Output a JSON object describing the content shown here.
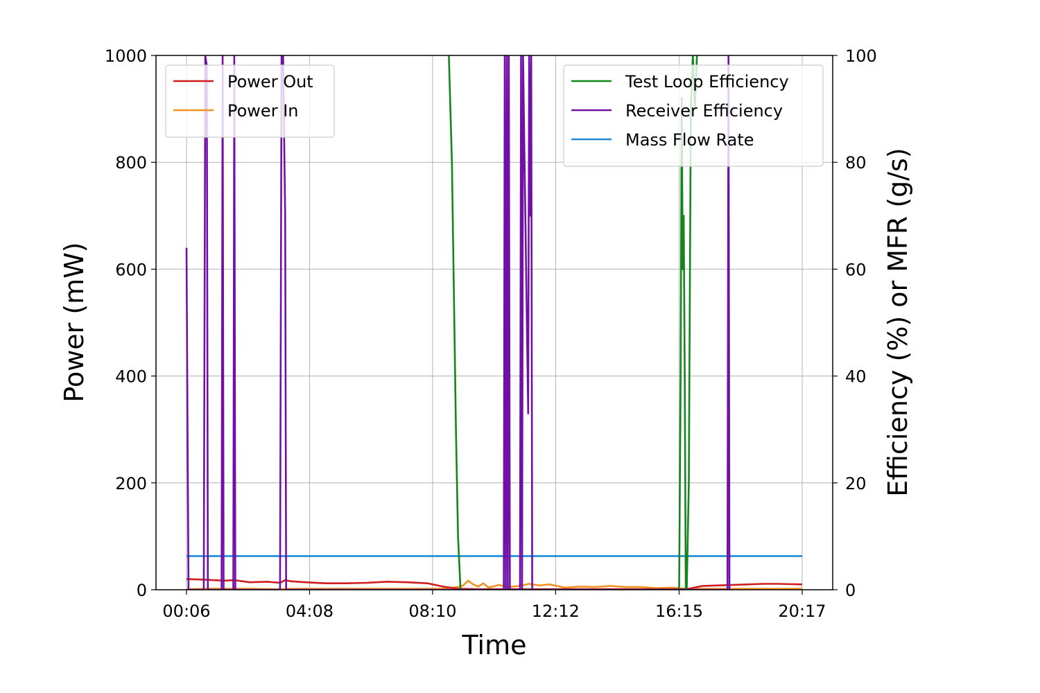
{
  "chart_data": {
    "type": "line",
    "xlabel": "Time",
    "ylabel_left": "Power (mW)",
    "ylabel_right": "Efficiency (%) or MFR (g/s)",
    "x_unit": "time of day (HH:MM)",
    "xlim": [
      "00:06",
      "20:17"
    ],
    "xticks": [
      "00:06",
      "04:08",
      "08:10",
      "12:12",
      "16:15",
      "20:17"
    ],
    "ylim_left": [
      0,
      1000
    ],
    "yticks_left": [
      "0",
      "200",
      "400",
      "600",
      "800",
      "1000"
    ],
    "ylim_right": [
      0,
      100
    ],
    "yticks_right": [
      "0",
      "20",
      "40",
      "60",
      "80",
      "100"
    ],
    "grid": true,
    "legend_left": {
      "placement": "top-left",
      "entries": [
        "Power Out",
        "Power In"
      ]
    },
    "legend_right": {
      "placement": "top-right",
      "entries": [
        "Test Loop Efficiency",
        "Receiver Efficiency",
        "Mass Flow Rate"
      ]
    },
    "colors": {
      "Power Out": "#d01c1c",
      "Power In": "#f39020",
      "Test Loop Efficiency": "#13861b",
      "Receiver Efficiency": "#7010a5",
      "Mass Flow Rate": "#1a8ad8"
    },
    "series": [
      {
        "name": "Power Out",
        "axis": "left",
        "x": [
          "00:06",
          "00:40",
          "01:20",
          "01:40",
          "02:10",
          "02:45",
          "03:10",
          "03:20",
          "03:30",
          "04:00",
          "04:40",
          "05:20",
          "06:00",
          "06:40",
          "07:20",
          "08:00",
          "08:30",
          "09:00",
          "09:45",
          "10:30",
          "11:30",
          "12:30",
          "13:30",
          "14:30",
          "15:30",
          "16:30",
          "17:00",
          "17:30",
          "18:00",
          "18:30",
          "19:00",
          "19:30",
          "20:17"
        ],
        "y": [
          20,
          19,
          17,
          18,
          14,
          15,
          13,
          18,
          16,
          14,
          12,
          12,
          13,
          15,
          14,
          12,
          6,
          2,
          1,
          1,
          1,
          1,
          1,
          1,
          1,
          1,
          7,
          8,
          9,
          10,
          11,
          11,
          10
        ]
      },
      {
        "name": "Power In",
        "axis": "left",
        "x": [
          "00:06",
          "00:45",
          "01:30",
          "02:15",
          "03:00",
          "03:45",
          "04:30",
          "05:30",
          "06:30",
          "07:30",
          "08:30",
          "09:00",
          "09:10",
          "09:20",
          "09:30",
          "09:40",
          "09:50",
          "10:00",
          "10:20",
          "10:40",
          "11:00",
          "11:20",
          "11:40",
          "12:00",
          "12:30",
          "13:00",
          "13:30",
          "14:00",
          "14:30",
          "15:00",
          "15:30",
          "16:00",
          "16:30",
          "17:00",
          "18:00",
          "19:00",
          "20:17"
        ],
        "y": [
          1,
          2,
          2,
          2,
          1,
          2,
          2,
          2,
          2,
          2,
          2,
          5,
          8,
          17,
          10,
          6,
          12,
          4,
          9,
          5,
          7,
          11,
          8,
          10,
          4,
          6,
          5,
          7,
          5,
          5,
          3,
          4,
          2,
          2,
          2,
          2,
          2
        ]
      },
      {
        "name": "Test Loop Efficiency",
        "axis": "right",
        "x": [
          "08:42",
          "08:48",
          "08:52",
          "08:56",
          "09:00",
          "09:05",
          "16:15",
          "16:18",
          "16:20",
          "16:22",
          "16:24",
          "16:26",
          "16:28",
          "16:30",
          "16:34",
          "16:38",
          "16:42",
          "16:46",
          "16:50"
        ],
        "y": [
          100,
          80,
          55,
          30,
          10,
          0,
          0,
          40,
          92,
          60,
          70,
          40,
          0,
          0,
          20,
          90,
          100,
          90,
          100
        ]
      },
      {
        "name": "Receiver Efficiency",
        "axis": "right",
        "x": [
          "00:06",
          "00:08",
          "00:10",
          "00:40",
          "00:43",
          "00:46",
          "00:48",
          "01:15",
          "01:17",
          "01:19",
          "01:38",
          "01:40",
          "01:42",
          "03:10",
          "03:13",
          "03:16",
          "03:20",
          "03:22",
          "10:30",
          "10:32",
          "10:34",
          "10:36",
          "10:38",
          "10:40",
          "10:42",
          "11:02",
          "11:04",
          "11:06",
          "11:08",
          "11:18",
          "11:20",
          "11:22",
          "11:24",
          "11:26",
          "17:50",
          "17:52",
          "17:54"
        ],
        "y": [
          64,
          30,
          0,
          0,
          100,
          98,
          0,
          0,
          100,
          0,
          0,
          100,
          0,
          0,
          100,
          100,
          70,
          0,
          0,
          100,
          0,
          100,
          0,
          100,
          0,
          0,
          100,
          0,
          100,
          33,
          100,
          70,
          100,
          0,
          0,
          100,
          0
        ]
      },
      {
        "name": "Mass Flow Rate",
        "axis": "right",
        "x": [
          "00:06",
          "20:17"
        ],
        "y": [
          6.3,
          6.3
        ]
      }
    ]
  }
}
